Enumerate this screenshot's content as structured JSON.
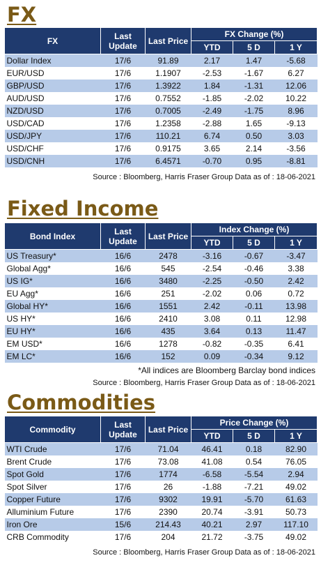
{
  "fx": {
    "title": "FX",
    "headers": {
      "name": "FX",
      "update": "Last Update",
      "price": "Last Price",
      "group": "FX Change (%)",
      "c1": "YTD",
      "c2": "5 D",
      "c3": "1 Y"
    },
    "rows": [
      [
        "Dollar Index",
        "17/6",
        "91.89",
        "2.17",
        "1.47",
        "-5.68"
      ],
      [
        "EUR/USD",
        "17/6",
        "1.1907",
        "-2.53",
        "-1.67",
        "6.27"
      ],
      [
        "GBP/USD",
        "17/6",
        "1.3922",
        "1.84",
        "-1.31",
        "12.06"
      ],
      [
        "AUD/USD",
        "17/6",
        "0.7552",
        "-1.85",
        "-2.02",
        "10.22"
      ],
      [
        "NZD/USD",
        "17/6",
        "0.7005",
        "-2.49",
        "-1.75",
        "8.96"
      ],
      [
        "USD/CAD",
        "17/6",
        "1.2358",
        "-2.88",
        "1.65",
        "-9.13"
      ],
      [
        "USD/JPY",
        "17/6",
        "110.21",
        "6.74",
        "0.50",
        "3.03"
      ],
      [
        "USD/CHF",
        "17/6",
        "0.9175",
        "3.65",
        "2.14",
        "-3.56"
      ],
      [
        "USD/CNH",
        "17/6",
        "6.4571",
        "-0.70",
        "0.95",
        "-8.81"
      ]
    ],
    "source": "Source : Bloomberg, Harris Fraser Group Data as of : 18-06-2021"
  },
  "fixed_income": {
    "title": "Fixed Income",
    "headers": {
      "name": "Bond Index",
      "update": "Last Update",
      "price": "Last Price",
      "group": "Index Change (%)",
      "c1": "YTD",
      "c2": "5 D",
      "c3": "1 Y"
    },
    "rows": [
      [
        "US Treasury*",
        "16/6",
        "2478",
        "-3.16",
        "-0.67",
        "-3.47"
      ],
      [
        "Global Agg*",
        "16/6",
        "545",
        "-2.54",
        "-0.46",
        "3.38"
      ],
      [
        "US IG*",
        "16/6",
        "3480",
        "-2.25",
        "-0.50",
        "2.42"
      ],
      [
        "EU Agg*",
        "16/6",
        "251",
        "-2.02",
        "0.06",
        "0.72"
      ],
      [
        "Global HY*",
        "16/6",
        "1551",
        "2.42",
        "-0.11",
        "13.98"
      ],
      [
        "US HY*",
        "16/6",
        "2410",
        "3.08",
        "0.11",
        "12.98"
      ],
      [
        "EU HY*",
        "16/6",
        "435",
        "3.64",
        "0.13",
        "11.47"
      ],
      [
        "EM USD*",
        "16/6",
        "1278",
        "-0.82",
        "-0.35",
        "6.41"
      ],
      [
        "EM LC*",
        "16/6",
        "152",
        "0.09",
        "-0.34",
        "9.12"
      ]
    ],
    "footnote": "*All indices are Bloomberg Barclay bond indices",
    "source": "Source : Bloomberg, Harris Fraser Group Data as of : 18-06-2021"
  },
  "commodities": {
    "title": "Commodities",
    "headers": {
      "name": "Commodity",
      "update": "Last Update",
      "price": "Last Price",
      "group": "Price Change (%)",
      "c1": "YTD",
      "c2": "5 D",
      "c3": "1 Y"
    },
    "rows": [
      [
        "WTI Crude",
        "17/6",
        "71.04",
        "46.41",
        "0.18",
        "82.90"
      ],
      [
        "Brent Crude",
        "17/6",
        "73.08",
        "41.08",
        "0.54",
        "76.05"
      ],
      [
        "Spot Gold",
        "17/6",
        "1774",
        "-6.58",
        "-5.54",
        "2.94"
      ],
      [
        "Spot Silver",
        "17/6",
        "26",
        "-1.88",
        "-7.21",
        "49.02"
      ],
      [
        "Copper Future",
        "17/6",
        "9302",
        "19.91",
        "-5.70",
        "61.63"
      ],
      [
        "Alluminium Future",
        "17/6",
        "2390",
        "20.74",
        "-3.91",
        "50.73"
      ],
      [
        "Iron Ore",
        "15/6",
        "214.43",
        "40.21",
        "2.97",
        "117.10"
      ],
      [
        "CRB Commodity",
        "17/6",
        "204",
        "21.72",
        "-3.75",
        "49.02"
      ]
    ],
    "source": "Source : Bloomberg, Harris Fraser Group Data as of : 18-06-2021"
  }
}
